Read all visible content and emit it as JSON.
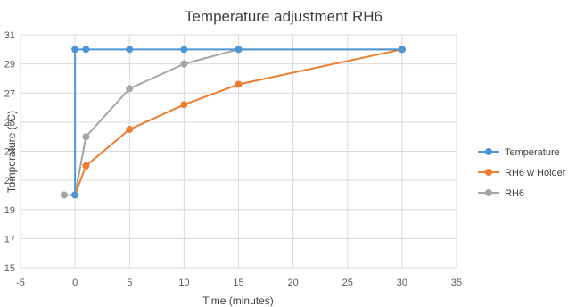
{
  "chart_data": {
    "type": "scatter",
    "title": "Temperature adjustment RH6",
    "xlabel": "Time (minutes)",
    "ylabel": "Temperature (°C)",
    "xlim": [
      -5,
      35
    ],
    "ylim": [
      15,
      31
    ],
    "x_ticks": [
      -5,
      0,
      5,
      10,
      15,
      20,
      25,
      30,
      35
    ],
    "y_ticks": [
      15,
      17,
      19,
      21,
      23,
      25,
      27,
      29,
      31
    ],
    "grid": true,
    "legend": "right",
    "series": [
      {
        "name": "Temperature",
        "color": "#4e97d7",
        "points": [
          [
            0,
            20
          ],
          [
            0,
            30
          ],
          [
            1,
            30
          ],
          [
            5,
            30
          ],
          [
            10,
            30
          ],
          [
            15,
            30
          ],
          [
            30,
            30
          ]
        ]
      },
      {
        "name": "RH6 w Holder",
        "color": "#ee7d31",
        "points": [
          [
            0,
            20
          ],
          [
            1,
            22
          ],
          [
            5,
            24.5
          ],
          [
            10,
            26.2
          ],
          [
            15,
            27.6
          ],
          [
            30,
            30
          ]
        ]
      },
      {
        "name": "RH6",
        "color": "#a5a5a5",
        "points": [
          [
            -1,
            20
          ],
          [
            0,
            20
          ],
          [
            1,
            24
          ],
          [
            5,
            27.3
          ],
          [
            10,
            29
          ],
          [
            15,
            30
          ],
          [
            30,
            30
          ]
        ]
      }
    ]
  }
}
